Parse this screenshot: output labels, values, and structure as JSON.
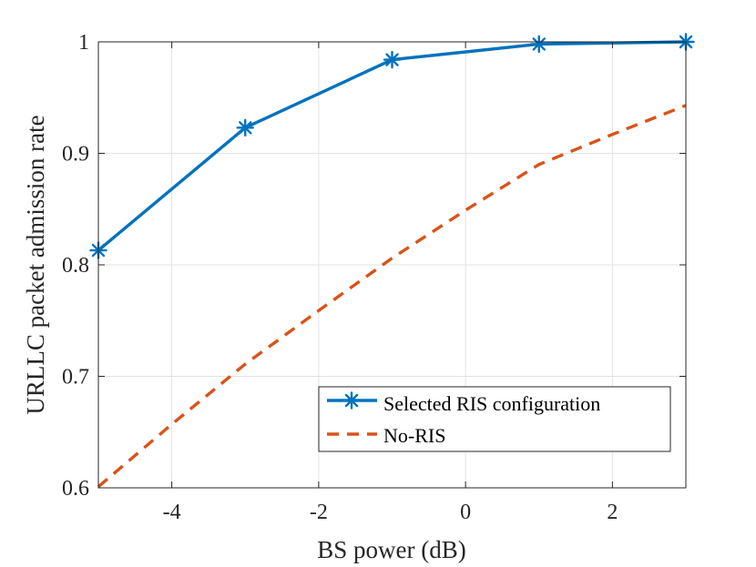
{
  "chart_data": {
    "type": "line",
    "xlabel": "BS power (dB)",
    "ylabel": "URLLC packet admission rate",
    "xlim": [
      -5,
      3
    ],
    "ylim": [
      0.6,
      1.0
    ],
    "xticks": [
      -4,
      -2,
      0,
      2
    ],
    "xtick_labels": [
      "-4",
      "-2",
      "0",
      "2"
    ],
    "yticks": [
      0.6,
      0.7,
      0.8,
      0.9,
      1.0
    ],
    "ytick_labels": [
      "0.6",
      "0.7",
      "0.8",
      "0.9",
      "1"
    ],
    "grid": true,
    "legend_position": "bottom-right",
    "series": [
      {
        "name": "Selected RIS configuration",
        "color": "#0072BD",
        "line_style": "solid",
        "marker": "asterisk",
        "x": [
          -5,
          -3,
          -1,
          1,
          3
        ],
        "y": [
          0.813,
          0.923,
          0.984,
          0.998,
          1.0
        ]
      },
      {
        "name": "No-RIS",
        "color": "#D95319",
        "line_style": "dashed",
        "marker": "none",
        "x": [
          -5,
          -4,
          -3,
          -2,
          -1,
          0,
          1,
          2,
          3
        ],
        "y": [
          0.601,
          0.657,
          0.711,
          0.759,
          0.806,
          0.849,
          0.89,
          0.917,
          0.943
        ]
      }
    ]
  }
}
